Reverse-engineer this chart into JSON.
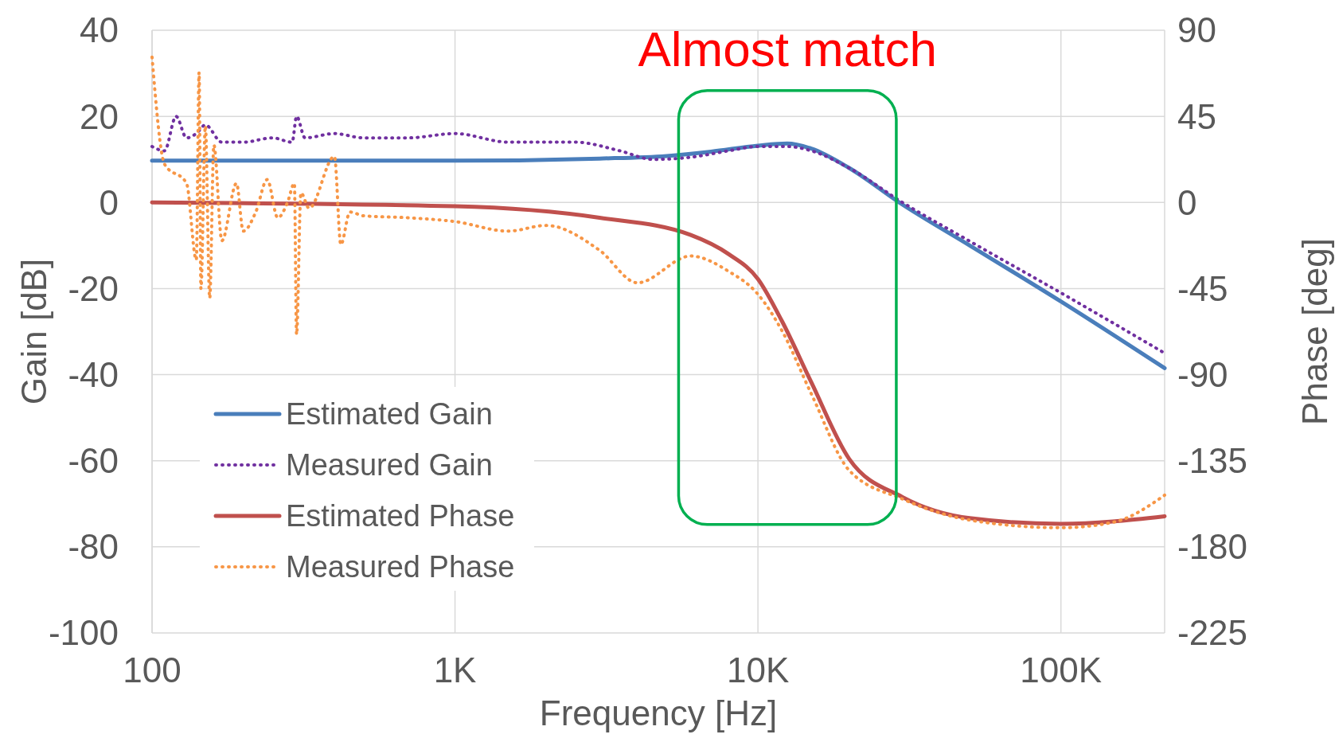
{
  "chart_data": {
    "type": "line",
    "log": "x",
    "xlabel": "Frequency [Hz]",
    "ylabel": "Gain [dB]",
    "y2label": "Phase [deg]",
    "annotations": [
      "Almost match"
    ],
    "grid": true,
    "legend": "bottom left",
    "xlim": [
      100,
      220000
    ],
    "xticks": [
      100,
      {
        "value": 1000,
        "label": "1K"
      },
      {
        "value": 10000,
        "label": "10K"
      },
      {
        "value": 100000,
        "label": "100K"
      }
    ],
    "ylim": [
      -100,
      40
    ],
    "yticks": [
      -100,
      -80,
      -60,
      -40,
      -20,
      0,
      20,
      40
    ],
    "y2lim": [
      -225,
      90
    ],
    "y2ticks": [
      -225,
      -180,
      -135,
      -90,
      -45,
      0,
      45,
      90
    ],
    "series": [
      {
        "name": "Estimated Gain",
        "color": "#4a7ebb",
        "line_style": "solid",
        "x": [
          100,
          1000,
          3000,
          5000,
          7000,
          10000,
          12500,
          15000,
          20000,
          30000,
          50000,
          100000,
          220000
        ],
        "values": [
          9.7,
          9.7,
          10.2,
          10.8,
          11.8,
          13.2,
          13.7,
          12.5,
          8,
          -0.5,
          -10,
          -23,
          -38.5
        ]
      },
      {
        "name": "Measured Gain",
        "color": "#7030a0",
        "line_style": "dotted",
        "x": [
          100,
          110,
          120,
          130,
          140,
          150,
          170,
          200,
          250,
          290,
          300,
          320,
          400,
          500,
          700,
          1000,
          1500,
          2500,
          3500,
          4500,
          6000,
          8000,
          10000,
          12500,
          15000,
          20000,
          30000,
          50000,
          100000,
          220000
        ],
        "values": [
          13,
          12,
          20,
          15,
          16,
          18,
          14,
          14,
          15,
          14,
          20,
          15,
          16,
          15,
          15,
          16,
          14,
          14,
          12,
          10,
          10.5,
          12,
          13,
          13,
          12,
          8,
          0,
          -9,
          -21,
          -35
        ]
      },
      {
        "name": "Estimated Phase",
        "color": "#c0504d",
        "line_style": "solid",
        "axis": "y2",
        "x": [
          100,
          1000,
          3000,
          6000,
          8000,
          10000,
          12000,
          15000,
          20000,
          30000,
          50000,
          100000,
          220000
        ],
        "values": [
          0,
          -2,
          -8,
          -17,
          -27,
          -40,
          -62,
          -94,
          -134,
          -154,
          -165,
          -168,
          -164
        ]
      },
      {
        "name": "Measured Phase",
        "color": "#f79646",
        "line_style": "dotted",
        "axis": "y2",
        "x": [
          100,
          110,
          130,
          140,
          143,
          145,
          150,
          155,
          160,
          170,
          190,
          200,
          220,
          240,
          260,
          280,
          295,
          300,
          310,
          330,
          400,
          420,
          450,
          500,
          700,
          1000,
          1500,
          2000,
          3000,
          4000,
          6000,
          8000,
          10000,
          12000,
          15000,
          20000,
          30000,
          50000,
          100000,
          150000,
          220000
        ],
        "values": [
          76,
          20,
          10,
          -30,
          68,
          -45,
          40,
          -50,
          30,
          -20,
          10,
          -15,
          -5,
          12,
          -8,
          0,
          10,
          -69,
          5,
          -3,
          24,
          -22,
          -5,
          -7,
          -8,
          -10,
          -15,
          -12,
          -25,
          -42,
          -28,
          -36,
          -48,
          -67,
          -100,
          -140,
          -155,
          -166,
          -170,
          -167,
          -153
        ]
      }
    ]
  }
}
